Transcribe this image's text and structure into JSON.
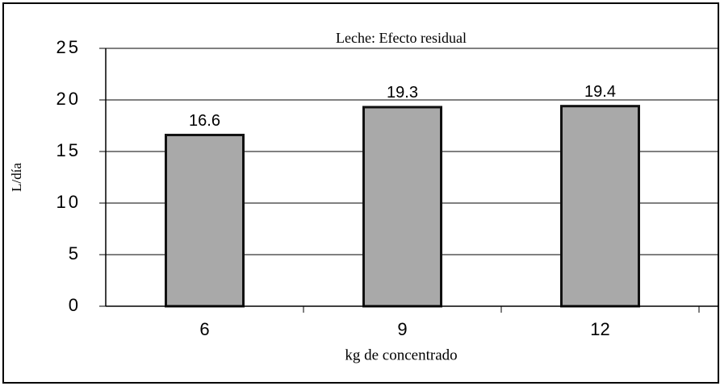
{
  "chart_data": {
    "type": "bar",
    "title": "Leche: Efecto residual",
    "x_label": "kg de concentrado",
    "y_label": "L/día",
    "categories": [
      "6",
      "9",
      "12"
    ],
    "values": [
      16.6,
      19.3,
      19.4
    ],
    "color": "#a9a9a9",
    "ylim": [
      0,
      25
    ],
    "yticks": [
      0,
      5,
      10,
      15,
      20,
      25
    ],
    "grid": true
  }
}
